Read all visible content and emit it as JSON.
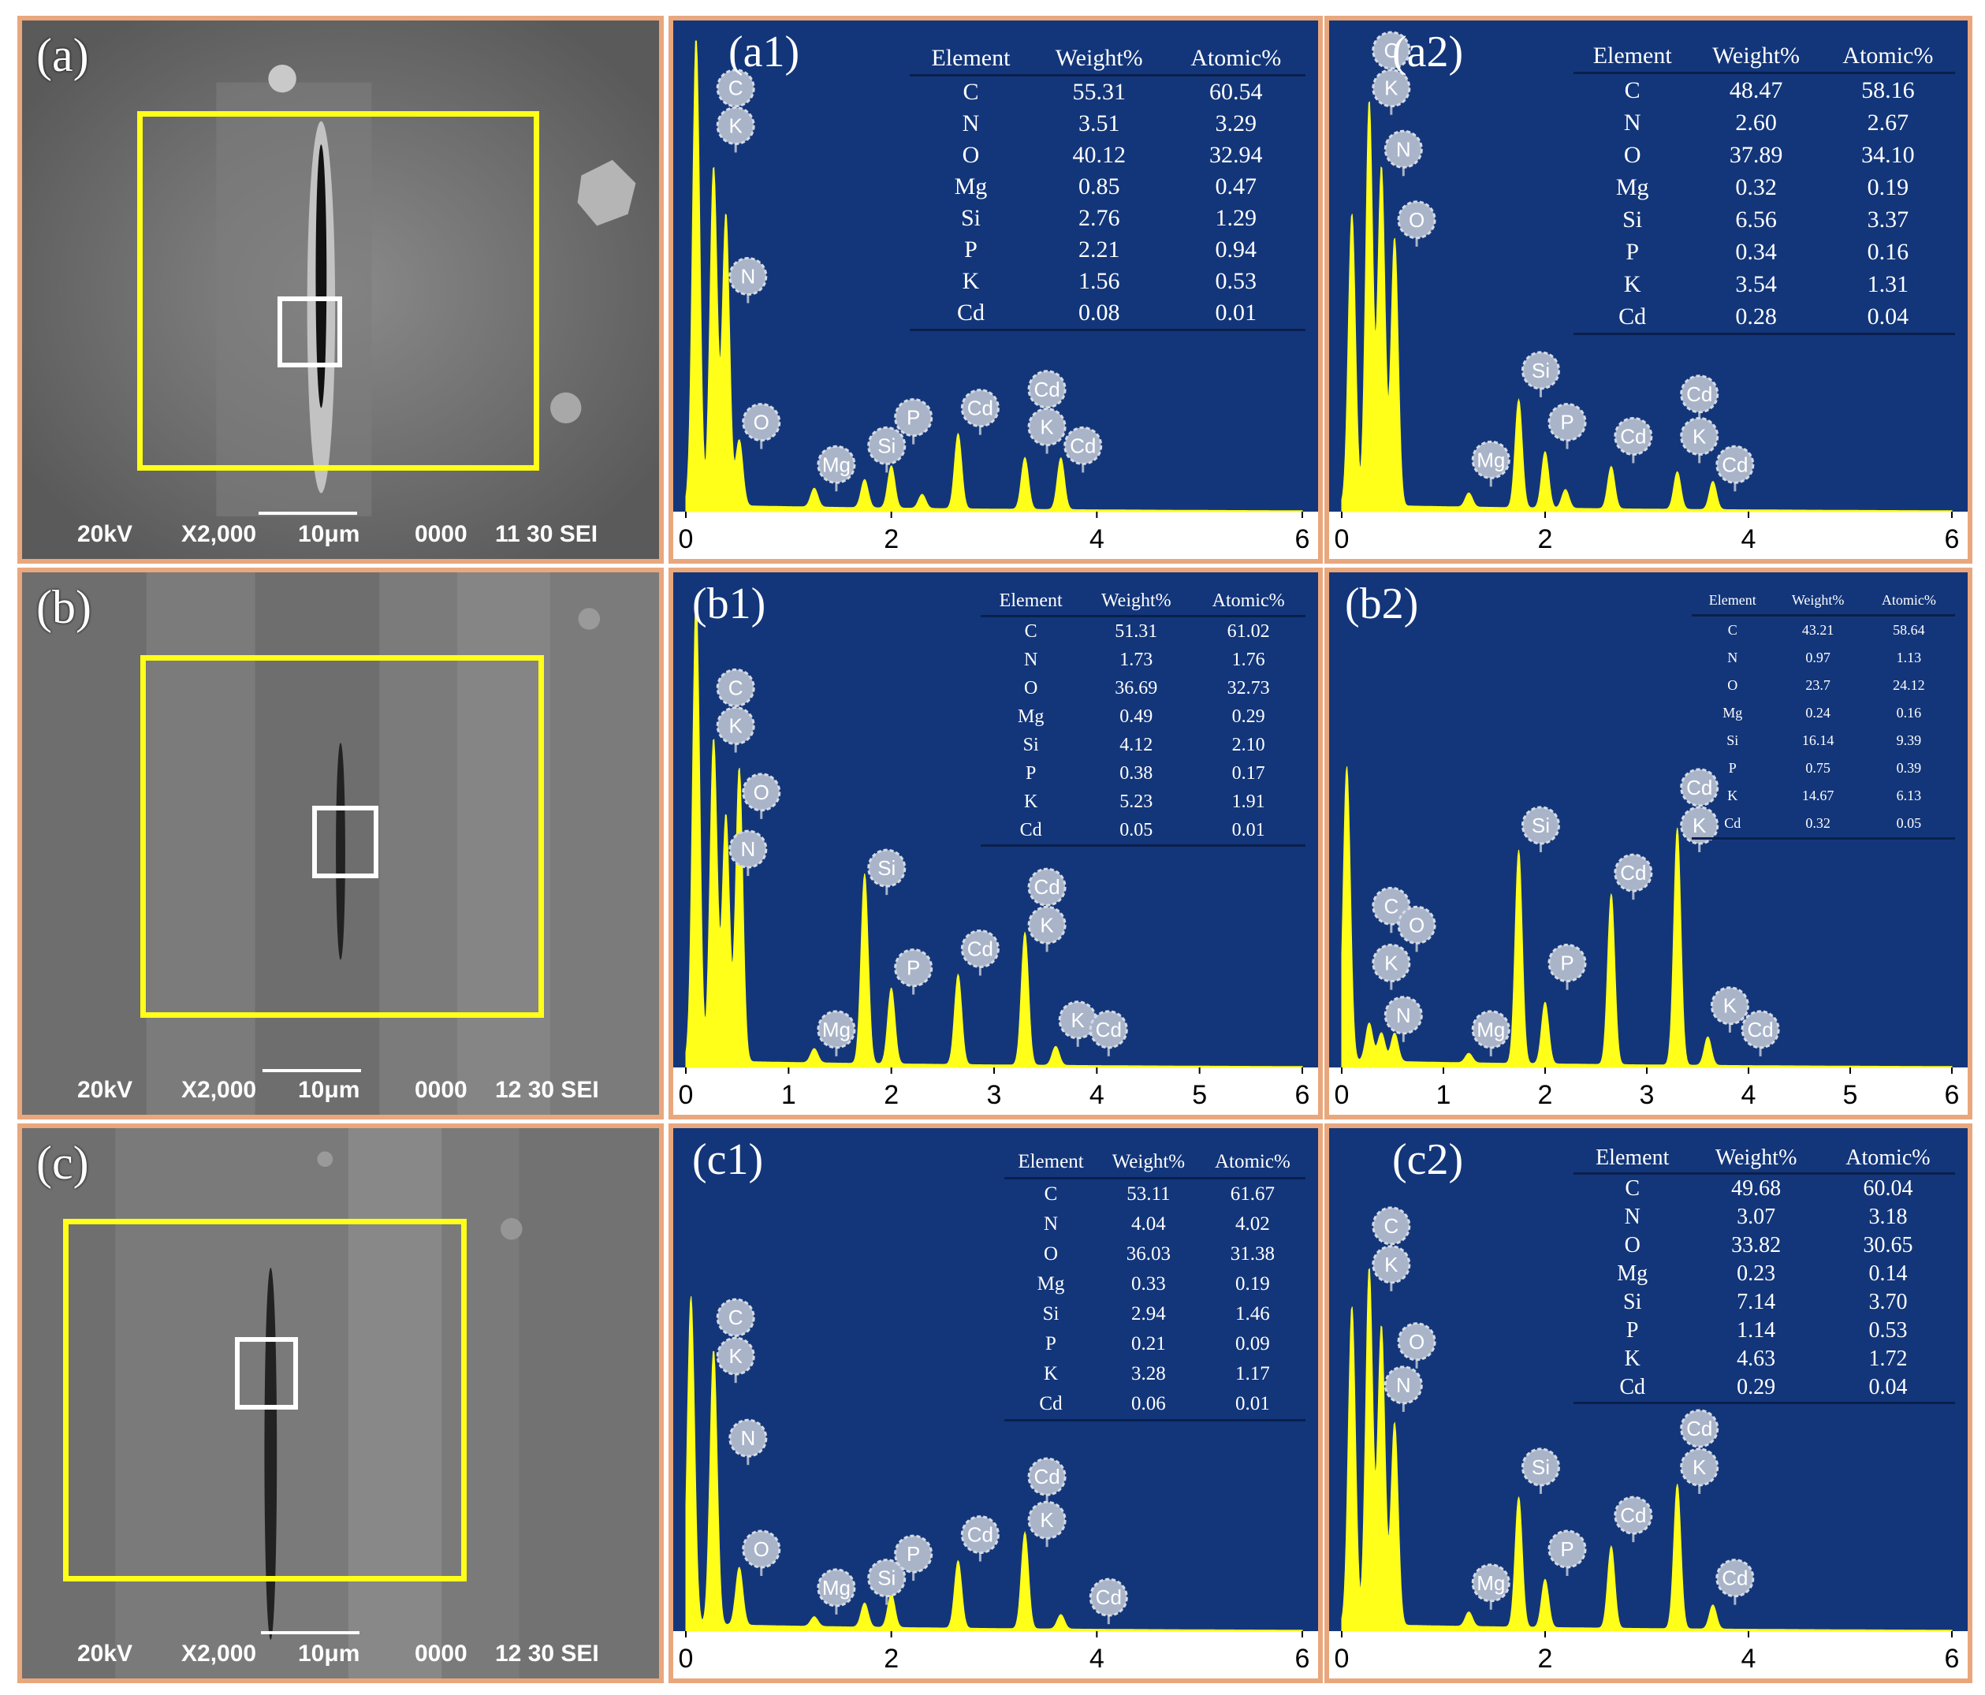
{
  "sem": [
    {
      "label": "(a)",
      "info": {
        "kv": "20kV",
        "mag": "X2,000",
        "scale": "10μm",
        "code": "0000",
        "id": "11 30 SEI"
      }
    },
    {
      "label": "(b)",
      "info": {
        "kv": "20kV",
        "mag": "X2,000",
        "scale": "10μm",
        "code": "0000",
        "id": "12 30 SEI"
      }
    },
    {
      "label": "(c)",
      "info": {
        "kv": "20kV",
        "mag": "X2,000",
        "scale": "10μm",
        "code": "0000",
        "id": "12 30 SEI"
      }
    }
  ],
  "colors": {
    "spectrum_bg": "#13367a",
    "peak": "#ffff1a",
    "frame": "#e9a77d",
    "marker": "#a9b4c8",
    "yellow_box": "#ffff1a"
  },
  "chart_data": [
    {
      "label": "(a1)",
      "type": "area",
      "xlim": [
        0,
        6
      ],
      "x_ticks": [
        "0",
        "2",
        "4",
        "6"
      ],
      "table": {
        "headers": [
          "Element",
          "Weight%",
          "Atomic%"
        ],
        "rows": [
          [
            "C",
            "55.31",
            "60.54"
          ],
          [
            "N",
            "3.51",
            "3.29"
          ],
          [
            "O",
            "40.12",
            "32.94"
          ],
          [
            "Mg",
            "0.85",
            "0.47"
          ],
          [
            "Si",
            "2.76",
            "1.29"
          ],
          [
            "P",
            "2.21",
            "0.94"
          ],
          [
            "K",
            "1.56",
            "0.53"
          ],
          [
            "Cd",
            "0.08",
            "0.01"
          ]
        ]
      },
      "peaks": [
        [
          0.1,
          1.0
        ],
        [
          0.27,
          0.72
        ],
        [
          0.39,
          0.62
        ],
        [
          0.52,
          0.14
        ],
        [
          1.25,
          0.04
        ],
        [
          1.74,
          0.06
        ],
        [
          2.0,
          0.09
        ],
        [
          2.3,
          0.03
        ],
        [
          2.65,
          0.16
        ],
        [
          3.3,
          0.11
        ],
        [
          3.65,
          0.11
        ]
      ],
      "markers": [
        [
          "C",
          0.27,
          0.9
        ],
        [
          "K",
          0.27,
          0.82
        ],
        [
          "N",
          0.39,
          0.5
        ],
        [
          "O",
          0.52,
          0.19
        ],
        [
          "Mg",
          1.25,
          0.1
        ],
        [
          "Si",
          1.74,
          0.14
        ],
        [
          "P",
          2.0,
          0.2
        ],
        [
          "Cd",
          2.65,
          0.22
        ],
        [
          "Cd",
          3.3,
          0.26
        ],
        [
          "K",
          3.3,
          0.18
        ],
        [
          "Cd",
          3.65,
          0.14
        ]
      ]
    },
    {
      "label": "(a2)",
      "type": "area",
      "xlim": [
        0,
        6
      ],
      "x_ticks": [
        "0",
        "2",
        "4",
        "6"
      ],
      "table": {
        "headers": [
          "Element",
          "Weight%",
          "Atomic%"
        ],
        "rows": [
          [
            "C",
            "48.47",
            "58.16"
          ],
          [
            "N",
            "2.60",
            "2.67"
          ],
          [
            "O",
            "37.89",
            "34.10"
          ],
          [
            "Mg",
            "0.32",
            "0.19"
          ],
          [
            "Si",
            "6.56",
            "3.37"
          ],
          [
            "P",
            "0.34",
            "0.16"
          ],
          [
            "K",
            "3.54",
            "1.31"
          ],
          [
            "Cd",
            "0.28",
            "0.04"
          ]
        ]
      },
      "peaks": [
        [
          0.1,
          0.62
        ],
        [
          0.27,
          0.86
        ],
        [
          0.39,
          0.72
        ],
        [
          0.52,
          0.57
        ],
        [
          1.25,
          0.03
        ],
        [
          1.74,
          0.23
        ],
        [
          2.0,
          0.12
        ],
        [
          2.2,
          0.04
        ],
        [
          2.65,
          0.09
        ],
        [
          3.3,
          0.08
        ],
        [
          3.65,
          0.06
        ]
      ],
      "markers": [
        [
          "C",
          0.27,
          0.98
        ],
        [
          "K",
          0.27,
          0.9
        ],
        [
          "N",
          0.39,
          0.77
        ],
        [
          "O",
          0.52,
          0.62
        ],
        [
          "Mg",
          1.25,
          0.11
        ],
        [
          "Si",
          1.74,
          0.3
        ],
        [
          "P",
          2.0,
          0.19
        ],
        [
          "Cd",
          2.65,
          0.16
        ],
        [
          "Cd",
          3.3,
          0.25
        ],
        [
          "K",
          3.3,
          0.16
        ],
        [
          "Cd",
          3.65,
          0.1
        ]
      ]
    },
    {
      "label": "(b1)",
      "type": "area",
      "xlim": [
        0,
        6
      ],
      "x_ticks": [
        "0",
        "1",
        "2",
        "3",
        "4",
        "5",
        "6"
      ],
      "table": {
        "headers": [
          "Element",
          "Weight%",
          "Atomic%"
        ],
        "rows": [
          [
            "C",
            "51.31",
            "61.02"
          ],
          [
            "N",
            "1.73",
            "1.76"
          ],
          [
            "O",
            "36.69",
            "32.73"
          ],
          [
            "Mg",
            "0.49",
            "0.29"
          ],
          [
            "Si",
            "4.12",
            "2.10"
          ],
          [
            "P",
            "0.38",
            "0.17"
          ],
          [
            "K",
            "5.23",
            "1.91"
          ],
          [
            "Cd",
            "0.05",
            "0.01"
          ]
        ]
      },
      "peaks": [
        [
          0.1,
          0.98
        ],
        [
          0.27,
          0.68
        ],
        [
          0.39,
          0.52
        ],
        [
          0.52,
          0.62
        ],
        [
          1.25,
          0.03
        ],
        [
          1.74,
          0.4
        ],
        [
          2.0,
          0.16
        ],
        [
          2.65,
          0.19
        ],
        [
          3.3,
          0.28
        ],
        [
          3.6,
          0.04
        ]
      ],
      "markers": [
        [
          "C",
          0.27,
          0.8
        ],
        [
          "K",
          0.27,
          0.72
        ],
        [
          "O",
          0.52,
          0.58
        ],
        [
          "N",
          0.39,
          0.46
        ],
        [
          "Si",
          1.74,
          0.42
        ],
        [
          "Mg",
          1.25,
          0.08
        ],
        [
          "P",
          2.0,
          0.21
        ],
        [
          "Cd",
          2.65,
          0.25
        ],
        [
          "Cd",
          3.3,
          0.38
        ],
        [
          "K",
          3.3,
          0.3
        ],
        [
          "K",
          3.6,
          0.1
        ],
        [
          "Cd",
          3.9,
          0.08
        ]
      ]
    },
    {
      "label": "(b2)",
      "type": "area",
      "xlim": [
        0,
        6
      ],
      "x_ticks": [
        "0",
        "1",
        "2",
        "3",
        "4",
        "5",
        "6"
      ],
      "table": {
        "headers": [
          "Element",
          "Weight%",
          "Atomic%"
        ],
        "rows": [
          [
            "C",
            "43.21",
            "58.64"
          ],
          [
            "N",
            "0.97",
            "1.13"
          ],
          [
            "O",
            "23.7",
            "24.12"
          ],
          [
            "Mg",
            "0.24",
            "0.16"
          ],
          [
            "Si",
            "16.14",
            "9.39"
          ],
          [
            "P",
            "0.75",
            "0.39"
          ],
          [
            "K",
            "14.67",
            "6.13"
          ],
          [
            "Cd",
            "0.32",
            "0.05"
          ]
        ]
      },
      "peaks": [
        [
          0.05,
          0.62
        ],
        [
          0.27,
          0.08
        ],
        [
          0.39,
          0.06
        ],
        [
          0.52,
          0.06
        ],
        [
          1.25,
          0.02
        ],
        [
          1.74,
          0.45
        ],
        [
          2.0,
          0.13
        ],
        [
          2.65,
          0.36
        ],
        [
          3.3,
          0.5
        ],
        [
          3.6,
          0.06
        ]
      ],
      "markers": [
        [
          "C",
          0.27,
          0.34
        ],
        [
          "O",
          0.52,
          0.3
        ],
        [
          "K",
          0.27,
          0.22
        ],
        [
          "N",
          0.39,
          0.11
        ],
        [
          "Mg",
          1.25,
          0.08
        ],
        [
          "Si",
          1.74,
          0.51
        ],
        [
          "P",
          2.0,
          0.22
        ],
        [
          "Cd",
          2.65,
          0.41
        ],
        [
          "Cd",
          3.3,
          0.59
        ],
        [
          "K",
          3.3,
          0.51
        ],
        [
          "K",
          3.6,
          0.13
        ],
        [
          "Cd",
          3.9,
          0.08
        ]
      ]
    },
    {
      "label": "(c1)",
      "type": "area",
      "xlim": [
        0,
        6
      ],
      "x_ticks": [
        "0",
        "2",
        "4",
        "6"
      ],
      "table": {
        "headers": [
          "Element",
          "Weight%",
          "Atomic%"
        ],
        "rows": [
          [
            "C",
            "53.11",
            "61.67"
          ],
          [
            "N",
            "4.04",
            "4.02"
          ],
          [
            "O",
            "36.03",
            "31.38"
          ],
          [
            "Mg",
            "0.33",
            "0.19"
          ],
          [
            "Si",
            "2.94",
            "1.46"
          ],
          [
            "P",
            "0.21",
            "0.09"
          ],
          [
            "K",
            "3.28",
            "1.17"
          ],
          [
            "Cd",
            "0.06",
            "0.01"
          ]
        ]
      },
      "peaks": [
        [
          0.05,
          0.68
        ],
        [
          0.27,
          0.57
        ],
        [
          0.52,
          0.12
        ],
        [
          1.25,
          0.02
        ],
        [
          1.74,
          0.05
        ],
        [
          2.0,
          0.07
        ],
        [
          2.65,
          0.14
        ],
        [
          3.3,
          0.2
        ],
        [
          3.65,
          0.03
        ]
      ],
      "markers": [
        [
          "C",
          0.27,
          0.65
        ],
        [
          "K",
          0.27,
          0.57
        ],
        [
          "N",
          0.39,
          0.4
        ],
        [
          "O",
          0.52,
          0.17
        ],
        [
          "Mg",
          1.25,
          0.09
        ],
        [
          "Si",
          1.74,
          0.11
        ],
        [
          "P",
          2.0,
          0.16
        ],
        [
          "Cd",
          2.65,
          0.2
        ],
        [
          "Cd",
          3.3,
          0.32
        ],
        [
          "K",
          3.3,
          0.23
        ],
        [
          "Cd",
          3.9,
          0.07
        ]
      ]
    },
    {
      "label": "(c2)",
      "type": "area",
      "xlim": [
        0,
        6
      ],
      "x_ticks": [
        "0",
        "2",
        "4",
        "6"
      ],
      "table": {
        "headers": [
          "Element",
          "Weight%",
          "Atomic%"
        ],
        "rows": [
          [
            "C",
            "49.68",
            "60.04"
          ],
          [
            "N",
            "3.07",
            "3.18"
          ],
          [
            "O",
            "33.82",
            "30.65"
          ],
          [
            "Mg",
            "0.23",
            "0.14"
          ],
          [
            "Si",
            "7.14",
            "3.70"
          ],
          [
            "P",
            "1.14",
            "0.53"
          ],
          [
            "K",
            "4.63",
            "1.72"
          ],
          [
            "Cd",
            "0.29",
            "0.04"
          ]
        ]
      },
      "peaks": [
        [
          0.1,
          0.66
        ],
        [
          0.27,
          0.74
        ],
        [
          0.39,
          0.62
        ],
        [
          0.52,
          0.42
        ],
        [
          1.25,
          0.03
        ],
        [
          1.74,
          0.27
        ],
        [
          2.0,
          0.1
        ],
        [
          2.65,
          0.17
        ],
        [
          3.3,
          0.3
        ],
        [
          3.65,
          0.05
        ]
      ],
      "markers": [
        [
          "C",
          0.27,
          0.84
        ],
        [
          "K",
          0.27,
          0.76
        ],
        [
          "O",
          0.52,
          0.6
        ],
        [
          "N",
          0.39,
          0.51
        ],
        [
          "Mg",
          1.25,
          0.1
        ],
        [
          "Si",
          1.74,
          0.34
        ],
        [
          "P",
          2.0,
          0.17
        ],
        [
          "Cd",
          2.65,
          0.24
        ],
        [
          "Cd",
          3.3,
          0.42
        ],
        [
          "K",
          3.3,
          0.34
        ],
        [
          "Cd",
          3.65,
          0.11
        ]
      ]
    }
  ]
}
